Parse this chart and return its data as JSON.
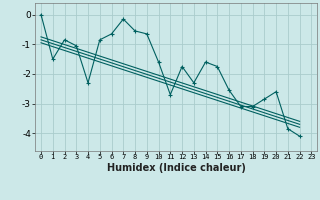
{
  "xlabel": "Humidex (Indice chaleur)",
  "bg_color": "#cce8e8",
  "line_color": "#006060",
  "grid_color": "#aacccc",
  "xlim": [
    -0.5,
    23.5
  ],
  "ylim": [
    -4.6,
    0.4
  ],
  "yticks": [
    0,
    -1,
    -2,
    -3,
    -4
  ],
  "xticks": [
    0,
    1,
    2,
    3,
    4,
    5,
    6,
    7,
    8,
    9,
    10,
    11,
    12,
    13,
    14,
    15,
    16,
    17,
    18,
    19,
    20,
    21,
    22,
    23
  ],
  "main_x": [
    0,
    1,
    2,
    3,
    4,
    5,
    6,
    7,
    8,
    9,
    10,
    11,
    12,
    13,
    14,
    15,
    16,
    17,
    18,
    19,
    20,
    21,
    22
  ],
  "main_y": [
    0.0,
    -1.5,
    -0.85,
    -1.05,
    -2.3,
    -0.85,
    -0.65,
    -0.15,
    -0.55,
    -0.65,
    -1.6,
    -2.7,
    -1.75,
    -2.3,
    -1.6,
    -1.75,
    -2.55,
    -3.1,
    -3.1,
    -2.85,
    -2.6,
    -3.85,
    -4.1
  ],
  "trend_lines": [
    {
      "x": [
        0,
        22
      ],
      "y": [
        -0.75,
        -3.6
      ]
    },
    {
      "x": [
        0,
        22
      ],
      "y": [
        -0.85,
        -3.7
      ]
    },
    {
      "x": [
        0,
        22
      ],
      "y": [
        -0.95,
        -3.8
      ]
    }
  ],
  "xlabel_fontsize": 7,
  "tick_fontsize": 5,
  "ytick_fontsize": 6.5
}
